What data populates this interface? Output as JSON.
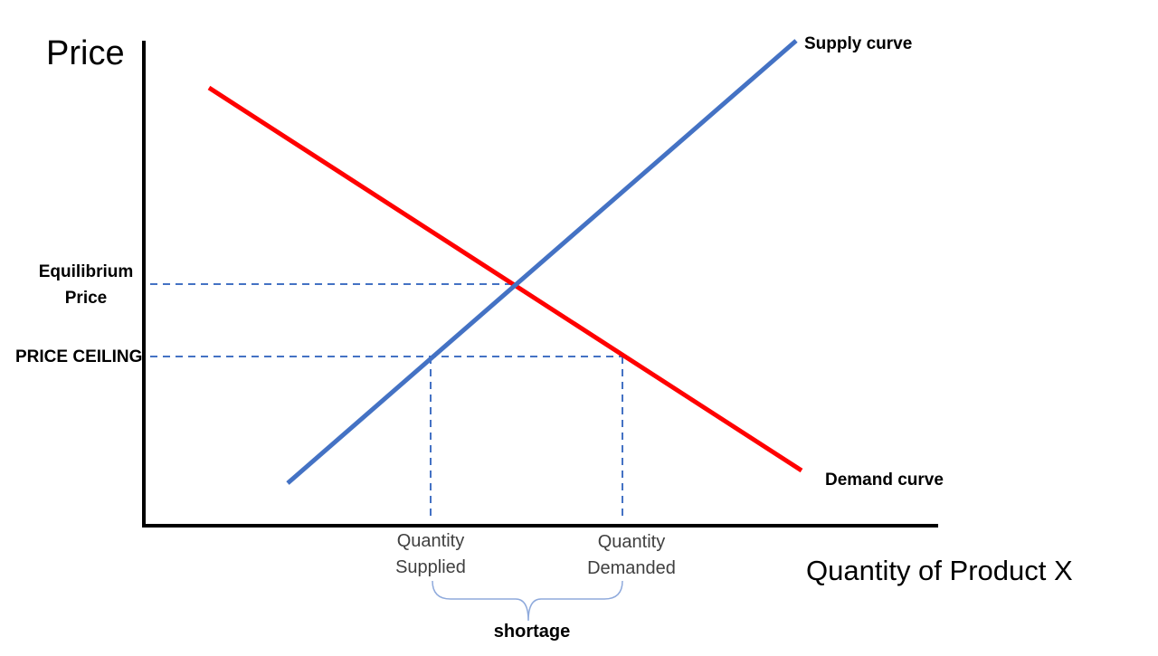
{
  "axes": {
    "y_title": "Price",
    "x_title": "Quantity of Product X"
  },
  "curves": {
    "supply": {
      "label": "Supply curve",
      "color": "#4472C4"
    },
    "demand": {
      "label": "Demand curve",
      "color": "#FF0000"
    }
  },
  "price_levels": {
    "equilibrium": {
      "line1": "Equilibrium",
      "line2": "Price"
    },
    "ceiling": {
      "label": "PRICE CEILING"
    }
  },
  "quantities": {
    "supplied": {
      "line1": "Quantity",
      "line2": "Supplied"
    },
    "demanded": {
      "line1": "Quantity",
      "line2": "Demanded"
    }
  },
  "shortage": {
    "label": "shortage"
  },
  "colors": {
    "axis": "#000000",
    "guide": "#4472C4",
    "brace": "#8FAADC"
  }
}
